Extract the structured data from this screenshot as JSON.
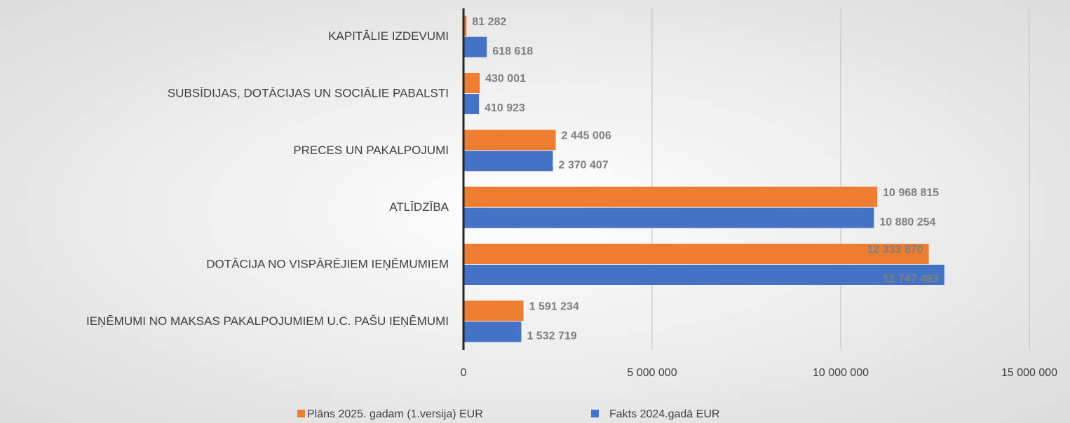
{
  "chart_data": {
    "type": "bar",
    "orientation": "horizontal",
    "categories": [
      "KAPITĀLIE IZDEVUMI",
      "SUBSĪDIJAS, DOTĀCIJAS UN SOCIĀLIE PABALSTI",
      "PRECES UN PAKALPOJUMI",
      "ATLĪDZĪBA",
      "DOTĀCIJA NO VISPĀRĒJIEM IEŅĒMUMIEM",
      "IEŅĒMUMI NO MAKSAS PAKALPOJUMIEM U.C. PAŠU IEŅĒMUMI"
    ],
    "series": [
      {
        "name": "Plāns 2025. gadam (1.versija) EUR",
        "color": "#ed7d31",
        "values": [
          81282,
          430001,
          2445006,
          10968815,
          12333870,
          1591234
        ],
        "value_labels": [
          "81 282",
          "430 001",
          "2 445 006",
          "10 968 815",
          "12 333 870",
          "1 591 234"
        ]
      },
      {
        "name": "Fakts 2024.gadā EUR",
        "color": "#4472c4",
        "values": [
          618618,
          410923,
          2370407,
          10880254,
          12747483,
          1532719
        ],
        "value_labels": [
          "618 618",
          "410 923",
          "2 370 407",
          "10 880 254",
          "12 747 483",
          "1 532 719"
        ]
      }
    ],
    "xlim": [
      0,
      15000000
    ],
    "xticks": [
      0,
      {
        "value": 5000000,
        "label": "5 000 000"
      },
      {
        "value": 10000000,
        "label": "10 000 000"
      },
      {
        "value": 15000000,
        "label": "15 000 000"
      }
    ],
    "grid": true,
    "legend": "bottom"
  }
}
